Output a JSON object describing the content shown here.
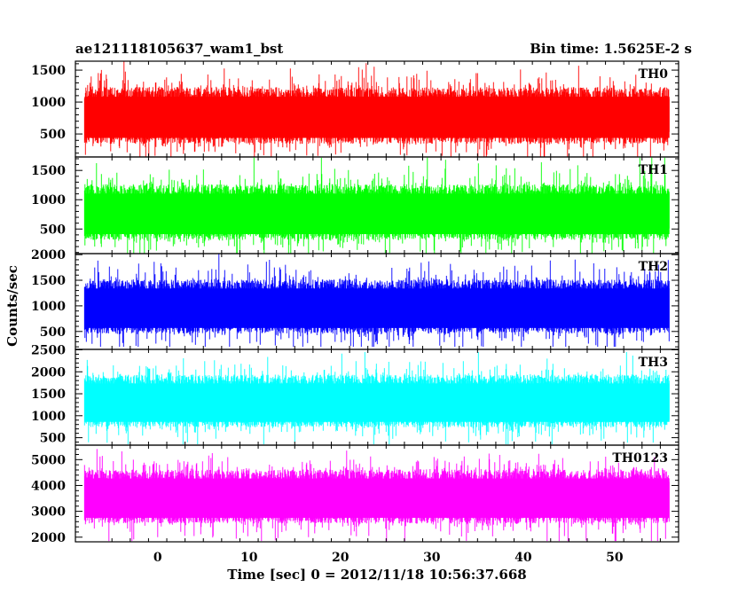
{
  "header": {
    "left_title": "ae121118105637_wam1_bst",
    "right_title": "Bin time: 1.5625E-2 s"
  },
  "chart_data": {
    "type": "line",
    "title": "ae121118105637_wam1_bst",
    "subtitle": "Bin time: 1.5625E-2 s",
    "xlabel": "Time [sec] 0 = 2012/11/18 10:56:37.668",
    "ylabel": "Counts/sec",
    "xlim": [
      -9,
      57
    ],
    "data_x_range": [
      -8,
      56
    ],
    "x_ticks": [
      0,
      10,
      20,
      30,
      40,
      50
    ],
    "grid": false,
    "legend": "none",
    "panels": [
      {
        "name": "TH0",
        "color": "#ff0000",
        "ylim": [
          140,
          1640
        ],
        "y_ticks": [
          500,
          1000,
          1500
        ],
        "typical_range": [
          100,
          1650
        ],
        "baseline_min": 150,
        "mean_level": 800
      },
      {
        "name": "TH1",
        "color": "#00ff00",
        "ylim": [
          80,
          1730
        ],
        "y_ticks": [
          500,
          1000,
          1500
        ],
        "typical_range": [
          60,
          1720
        ],
        "baseline_min": 120,
        "mean_level": 800
      },
      {
        "name": "TH2",
        "color": "#0000ff",
        "ylim": [
          150,
          2020
        ],
        "y_ticks": [
          500,
          1000,
          1500,
          2000
        ],
        "typical_range": [
          200,
          2050
        ],
        "baseline_min": 250,
        "mean_level": 1000
      },
      {
        "name": "TH3",
        "color": "#00ffff",
        "ylim": [
          330,
          2510
        ],
        "y_ticks": [
          500,
          1000,
          1500,
          2000,
          2500
        ],
        "typical_range": [
          350,
          2450
        ],
        "baseline_min": 450,
        "mean_level": 1350
      },
      {
        "name": "TH0123",
        "color": "#ff00ff",
        "ylim": [
          1820,
          5560
        ],
        "y_ticks": [
          2000,
          3000,
          4000,
          5000
        ],
        "typical_range": [
          1850,
          5500
        ],
        "baseline_min": 2100,
        "mean_level": 3600
      }
    ]
  }
}
